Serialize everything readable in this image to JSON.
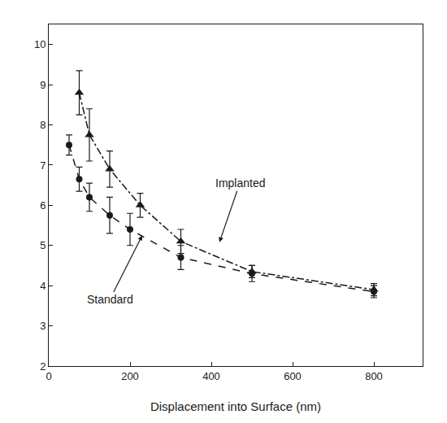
{
  "chart_data": {
    "type": "line",
    "xlabel": "Displacement into Surface (nm)",
    "xlim": [
      0,
      920
    ],
    "ylim": [
      2,
      10.5
    ],
    "xticks": [
      0,
      200,
      400,
      600,
      800
    ],
    "yticks": [
      2,
      3,
      4,
      5,
      6,
      7,
      8,
      9,
      10
    ],
    "grid": false,
    "color": "#1a1a1a",
    "series": [
      {
        "name": "Standard",
        "color": "#1a1a1a",
        "marker": "circle",
        "line_style": "dashed",
        "x": [
          50,
          75,
          100,
          150,
          200,
          325,
          500,
          800
        ],
        "values": [
          7.5,
          6.65,
          6.2,
          5.75,
          5.4,
          4.7,
          4.3,
          3.85
        ],
        "yerr_lo": [
          0.25,
          0.3,
          0.35,
          0.45,
          0.4,
          0.3,
          0.2,
          0.15
        ],
        "yerr_hi": [
          0.25,
          0.3,
          0.35,
          0.45,
          0.4,
          0.3,
          0.2,
          0.15
        ]
      },
      {
        "name": "Implanted",
        "color": "#1a1a1a",
        "marker": "triangle",
        "line_style": "dashdot",
        "x": [
          75,
          100,
          150,
          225,
          325,
          500,
          800
        ],
        "values": [
          8.8,
          7.75,
          6.9,
          6.0,
          5.1,
          4.35,
          3.9
        ],
        "yerr_lo": [
          0.55,
          0.65,
          0.45,
          0.3,
          0.3,
          0.15,
          0.15
        ],
        "yerr_hi": [
          0.55,
          0.65,
          0.45,
          0.3,
          0.3,
          0.15,
          0.15
        ]
      }
    ],
    "annotations": [
      {
        "text": "Implanted",
        "x": 420,
        "y": 5.08,
        "text_x": 470,
        "text_y": 6.55
      },
      {
        "text": "Standard",
        "x": 230,
        "y": 5.25,
        "text_x": 150,
        "text_y": 3.65
      }
    ]
  }
}
